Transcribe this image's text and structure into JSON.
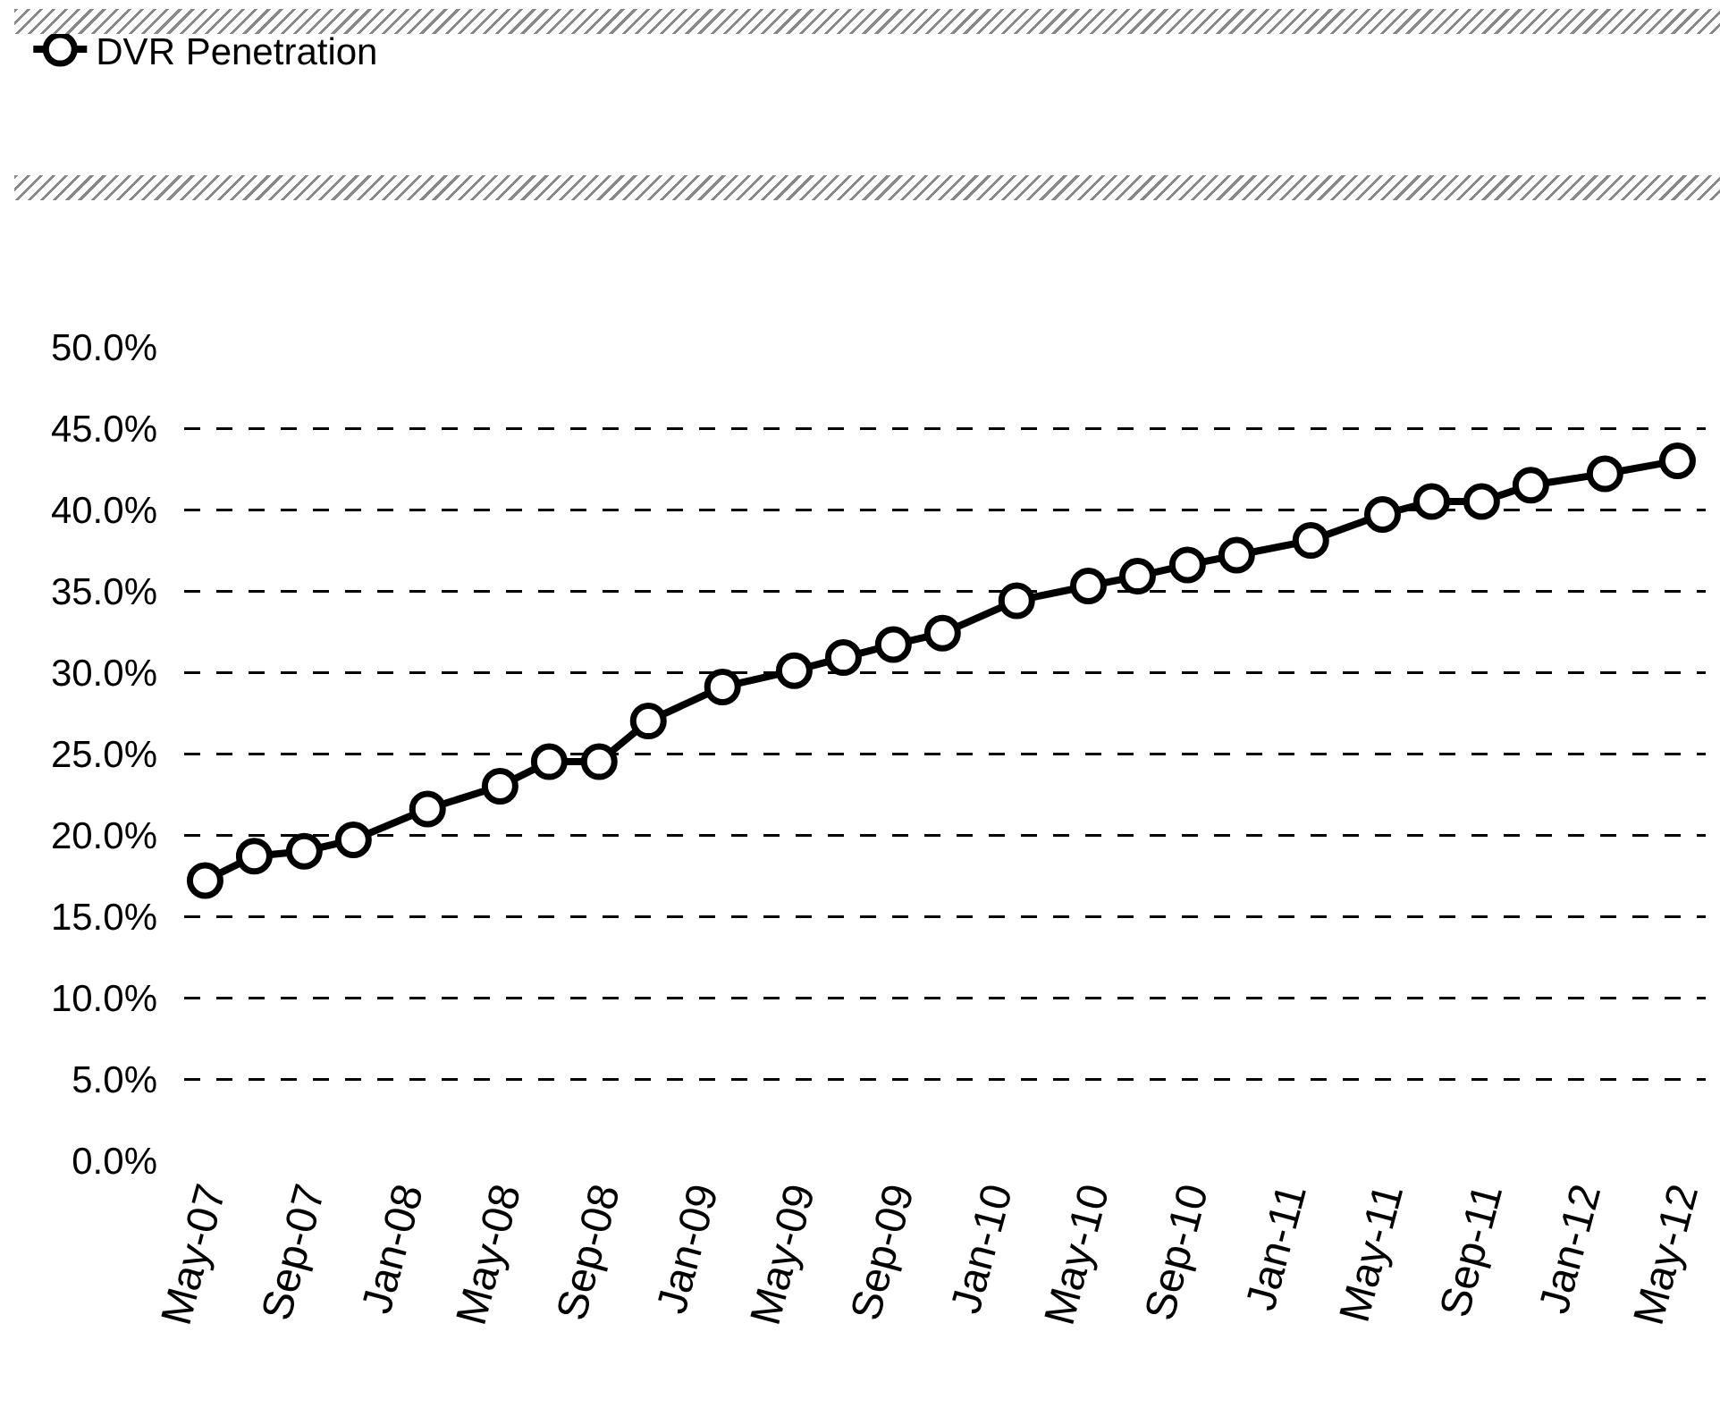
{
  "chart_data": {
    "type": "line",
    "x": [
      "2007-05",
      "2007-07",
      "2007-09",
      "2007-11",
      "2008-02",
      "2008-05",
      "2008-07",
      "2008-09",
      "2008-11",
      "2009-02",
      "2009-05",
      "2009-07",
      "2009-09",
      "2009-11",
      "2010-02",
      "2010-05",
      "2010-07",
      "2010-09",
      "2010-11",
      "2011-02",
      "2011-05",
      "2011-07",
      "2011-09",
      "2011-11",
      "2012-02",
      "2012-05"
    ],
    "series": [
      {
        "name": "DVR Penetration",
        "color": "#000000",
        "values": [
          17.2,
          18.7,
          19.0,
          19.7,
          21.6,
          23.0,
          24.5,
          24.5,
          27.0,
          29.1,
          30.1,
          30.9,
          31.7,
          32.4,
          34.4,
          35.3,
          35.9,
          36.6,
          37.2,
          38.1,
          39.7,
          40.5,
          40.5,
          41.5,
          42.2,
          43.0
        ]
      }
    ],
    "xlim": [
      "2007-04-05",
      "2012-06-05"
    ],
    "xticks": [
      {
        "value": "2007-05",
        "label": "May-07"
      },
      {
        "value": "2007-09",
        "label": "Sep-07"
      },
      {
        "value": "2008-01",
        "label": "Jan-08"
      },
      {
        "value": "2008-05",
        "label": "May-08"
      },
      {
        "value": "2008-09",
        "label": "Sep-08"
      },
      {
        "value": "2009-01",
        "label": "Jan-09"
      },
      {
        "value": "2009-05",
        "label": "May-09"
      },
      {
        "value": "2009-09",
        "label": "Sep-09"
      },
      {
        "value": "2010-01",
        "label": "Jan-10"
      },
      {
        "value": "2010-05",
        "label": "May-10"
      },
      {
        "value": "2010-09",
        "label": "Sep-10"
      },
      {
        "value": "2011-01",
        "label": "Jan-11"
      },
      {
        "value": "2011-05",
        "label": "May-11"
      },
      {
        "value": "2011-09",
        "label": "Sep-11"
      },
      {
        "value": "2012-01",
        "label": "Jan-12"
      },
      {
        "value": "2012-05",
        "label": "May-12"
      }
    ],
    "ylim": [
      0,
      50
    ],
    "yticks": [
      {
        "value": 0,
        "label": "0.0%"
      },
      {
        "value": 5,
        "label": "5.0%"
      },
      {
        "value": 10,
        "label": "10.0%"
      },
      {
        "value": 15,
        "label": "15.0%"
      },
      {
        "value": 20,
        "label": "20.0%"
      },
      {
        "value": 25,
        "label": "25.0%"
      },
      {
        "value": 30,
        "label": "30.0%"
      },
      {
        "value": 35,
        "label": "35.0%"
      },
      {
        "value": 40,
        "label": "40.0%"
      },
      {
        "value": 45,
        "label": "45.0%"
      },
      {
        "value": 50,
        "label": "50.0%"
      }
    ],
    "grid": "y",
    "legend": "top left",
    "marker": "circle",
    "line_style": "solid"
  }
}
